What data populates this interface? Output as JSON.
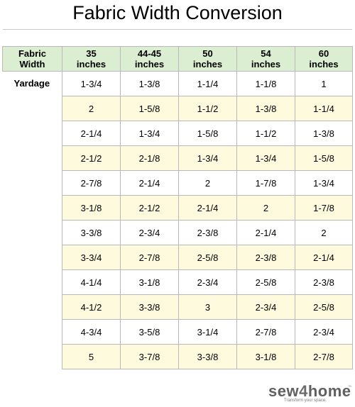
{
  "title": "Fabric Width Conversion",
  "table": {
    "headers": [
      {
        "line1": "Fabric",
        "line2": "Width"
      },
      {
        "line1": "35",
        "line2": "inches"
      },
      {
        "line1": "44-45",
        "line2": "inches"
      },
      {
        "line1": "50",
        "line2": "inches"
      },
      {
        "line1": "54",
        "line2": "inches"
      },
      {
        "line1": "60",
        "line2": "inches"
      }
    ],
    "row_label": "Yardage",
    "rows": [
      [
        "1-3/4",
        "1-3/8",
        "1-1/4",
        "1-1/8",
        "1"
      ],
      [
        "2",
        "1-5/8",
        "1-1/2",
        "1-3/8",
        "1-1/4"
      ],
      [
        "2-1/4",
        "1-3/4",
        "1-5/8",
        "1-1/2",
        "1-3/8"
      ],
      [
        "2-1/2",
        "2-1/8",
        "1-3/4",
        "1-3/4",
        "1-5/8"
      ],
      [
        "2-7/8",
        "2-1/4",
        "2",
        "1-7/8",
        "1-3/4"
      ],
      [
        "3-1/8",
        "2-1/2",
        "2-1/4",
        "2",
        "1-7/8"
      ],
      [
        "3-3/8",
        "2-3/4",
        "2-3/8",
        "2-1/4",
        "2"
      ],
      [
        "3-3/4",
        "2-7/8",
        "2-5/8",
        "2-3/8",
        "2-1/4"
      ],
      [
        "4-1/4",
        "3-1/8",
        "2-3/4",
        "2-5/8",
        "2-3/8"
      ],
      [
        "4-1/2",
        "3-3/8",
        "3",
        "2-3/4",
        "2-5/8"
      ],
      [
        "4-3/4",
        "3-5/8",
        "3-1/4",
        "2-7/8",
        "2-3/4"
      ],
      [
        "5",
        "3-7/8",
        "3-3/8",
        "3-1/8",
        "2-7/8"
      ]
    ]
  },
  "logo": {
    "part1": "sew",
    "part2": "4",
    "part3": "home",
    "tagline": "Transform your space.",
    "tm": "™"
  },
  "colors": {
    "header_bg": "#dbeed1",
    "alt_row_bg": "#fdfadd",
    "border": "#b9b9b9"
  }
}
